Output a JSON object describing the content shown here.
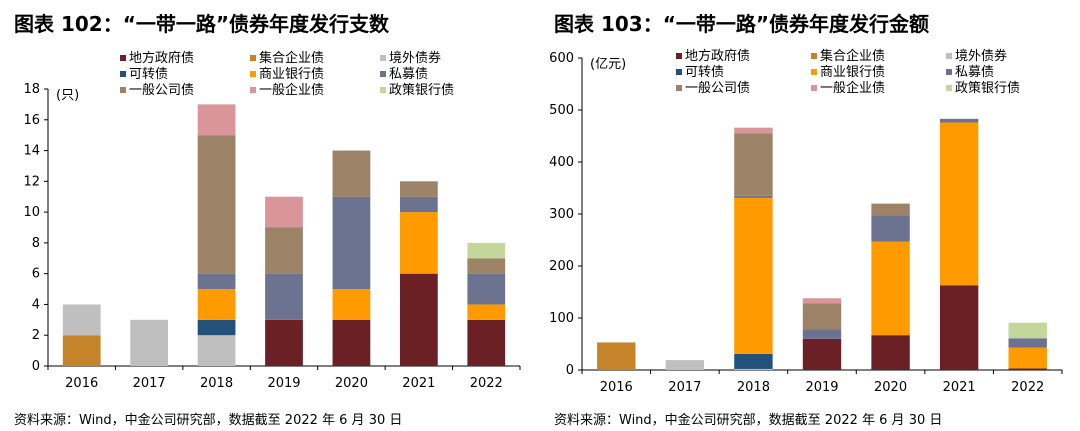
{
  "chart_data": [
    {
      "type": "bar",
      "stacked": true,
      "title": "图表 102：“一带一路”债券年度发行支数",
      "unit_label": "(只)",
      "xlabel": "",
      "ylabel": "(只)",
      "ylim": [
        0,
        18
      ],
      "yticks": [
        0,
        2,
        4,
        6,
        8,
        10,
        12,
        14,
        16,
        18
      ],
      "grid": false,
      "categories": [
        "2016",
        "2017",
        "2018",
        "2019",
        "2020",
        "2021",
        "2022"
      ],
      "series": [
        {
          "name": "地方政府债",
          "color": "#6B2025",
          "values": [
            0,
            0,
            0,
            3,
            3,
            6,
            3
          ]
        },
        {
          "name": "集合企业债",
          "color": "#C5832A",
          "values": [
            2,
            0,
            0,
            0,
            0,
            0,
            0
          ]
        },
        {
          "name": "境外债券",
          "color": "#BFBFBF",
          "values": [
            2,
            3,
            2,
            0,
            0,
            0,
            0
          ]
        },
        {
          "name": "可转债",
          "color": "#24517A",
          "values": [
            0,
            0,
            1,
            0,
            0,
            0,
            0
          ]
        },
        {
          "name": "商业银行债",
          "color": "#FF9B00",
          "values": [
            0,
            0,
            2,
            0,
            2,
            4,
            1
          ]
        },
        {
          "name": "私募债",
          "color": "#6B7390",
          "values": [
            0,
            0,
            1,
            3,
            6,
            1,
            2
          ]
        },
        {
          "name": "一般公司债",
          "color": "#9C8266",
          "values": [
            0,
            0,
            9,
            3,
            3,
            1,
            1
          ]
        },
        {
          "name": "一般企业债",
          "color": "#D99599",
          "values": [
            0,
            0,
            2,
            2,
            0,
            0,
            0
          ]
        },
        {
          "name": "政策银行债",
          "color": "#C4D79B",
          "values": [
            0,
            0,
            0,
            0,
            0,
            0,
            1
          ]
        }
      ],
      "source": "资料来源：Wind，中金公司研究部，数据截至 2022 年 6 月 30 日"
    },
    {
      "type": "bar",
      "stacked": true,
      "title": "图表 103：“一带一路”债券年度发行金额",
      "unit_label": "(亿元)",
      "xlabel": "",
      "ylabel": "(亿元)",
      "ylim": [
        0,
        600
      ],
      "yticks": [
        0,
        100,
        200,
        300,
        400,
        500,
        600
      ],
      "grid": false,
      "categories": [
        "2016",
        "2017",
        "2018",
        "2019",
        "2020",
        "2021",
        "2022"
      ],
      "series": [
        {
          "name": "地方政府债",
          "color": "#6B2025",
          "values": [
            0,
            0,
            0,
            60,
            67,
            163,
            3
          ]
        },
        {
          "name": "集合企业债",
          "color": "#C5832A",
          "values": [
            53,
            0,
            0,
            0,
            0,
            0,
            0
          ]
        },
        {
          "name": "境外债券",
          "color": "#BFBFBF",
          "values": [
            0,
            19,
            2,
            0,
            0,
            0,
            0
          ]
        },
        {
          "name": "可转债",
          "color": "#24517A",
          "values": [
            0,
            0,
            29,
            0,
            0,
            0,
            0
          ]
        },
        {
          "name": "商业银行债",
          "color": "#FF9B00",
          "values": [
            0,
            0,
            300,
            0,
            180,
            313,
            40
          ]
        },
        {
          "name": "私募债",
          "color": "#6B7390",
          "values": [
            0,
            0,
            4,
            18,
            50,
            7,
            18
          ]
        },
        {
          "name": "一般公司债",
          "color": "#9C8266",
          "values": [
            0,
            0,
            120,
            50,
            23,
            0,
            0
          ]
        },
        {
          "name": "一般企业债",
          "color": "#D99599",
          "values": [
            0,
            0,
            11,
            10,
            0,
            0,
            0
          ]
        },
        {
          "name": "政策银行债",
          "color": "#C4D79B",
          "values": [
            0,
            0,
            0,
            0,
            0,
            0,
            30
          ]
        }
      ],
      "source": "资料来源：Wind，中金公司研究部，数据截至 2022 年 6 月 30 日"
    }
  ]
}
